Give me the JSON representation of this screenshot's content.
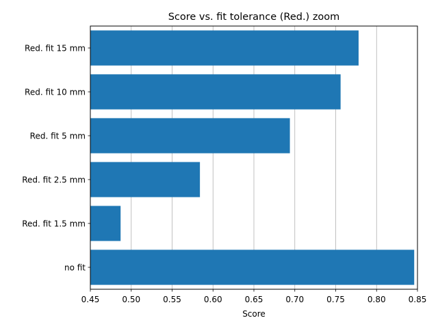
{
  "chart_data": {
    "type": "bar",
    "orientation": "horizontal",
    "title": "Score vs. fit tolerance (Red.) zoom",
    "xlabel": "Score",
    "ylabel": "",
    "categories": [
      "no fit",
      "Red. fit 1.5 mm",
      "Red. fit 2.5 mm",
      "Red. fit 5 mm",
      "Red. fit 10 mm",
      "Red. fit 15 mm"
    ],
    "values": [
      0.846,
      0.487,
      0.584,
      0.694,
      0.756,
      0.778
    ],
    "xlim": [
      0.45,
      0.85
    ],
    "xticks": [
      "0.45",
      "0.50",
      "0.55",
      "0.60",
      "0.65",
      "0.70",
      "0.75",
      "0.80",
      "0.85"
    ],
    "grid": "x",
    "bar_color": "#1f77b4",
    "grid_color": "#b0b0b0",
    "frame_color": "#000000"
  }
}
